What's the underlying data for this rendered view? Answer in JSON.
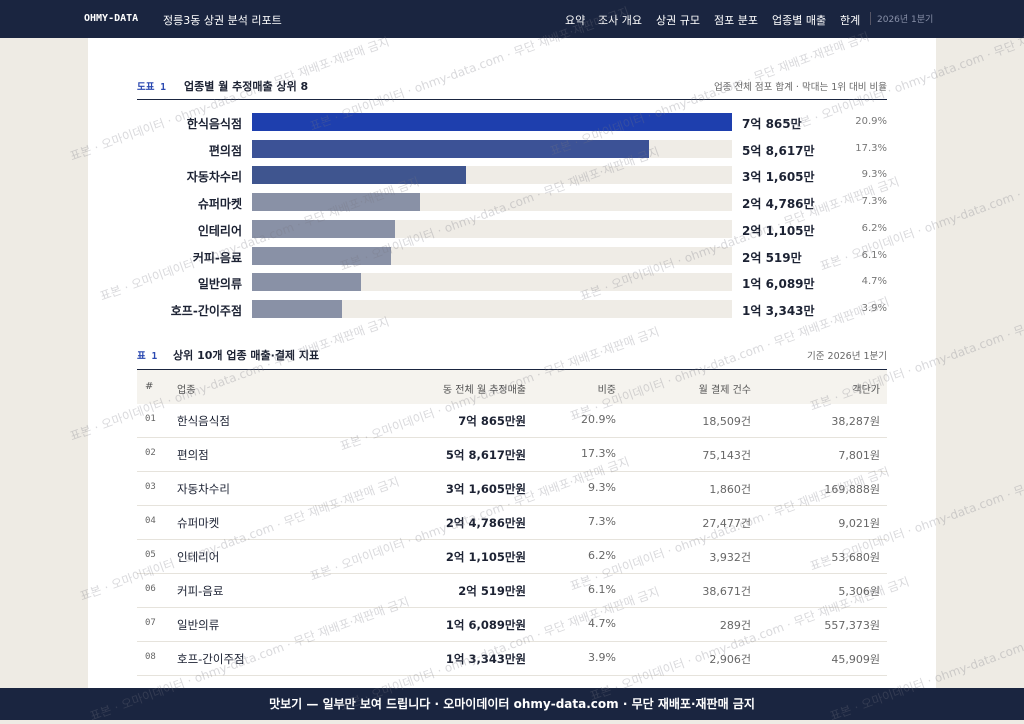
{
  "header": {
    "brand": "OHMY-DATA",
    "title": "정릉3동 상권 분석 리포트",
    "nav": [
      "요약",
      "조사 개요",
      "상권 규모",
      "점포 분포",
      "업종별 매출",
      "한계"
    ],
    "period": "2026년 1분기"
  },
  "chart_data": {
    "type": "bar",
    "figure_label": "도표 1",
    "title": "업종별 월 추정매출 상위 8",
    "note": "업종 전체 점포 합계 · 막대는 1위 대비 비율",
    "categories": [
      "한식음식점",
      "편의점",
      "자동차수리",
      "슈퍼마켓",
      "인테리어",
      "커피-음료",
      "일반의류",
      "호프-간이주점"
    ],
    "values": [
      70865,
      58617,
      31605,
      24786,
      21105,
      20519,
      16089,
      13343
    ],
    "value_labels": [
      "7억 865만",
      "5억 8,617만",
      "3억 1,605만",
      "2억 4,786만",
      "2억 1,105만",
      "2억 519만",
      "1억 6,089만",
      "1억 3,343만"
    ],
    "share_labels": [
      "20.9%",
      "17.3%",
      "9.3%",
      "7.3%",
      "6.2%",
      "6.1%",
      "4.7%",
      "3.9%"
    ],
    "colors": [
      "#1e3fae",
      "#3c5296",
      "#3f558f",
      "#8991a6",
      "#8991a6",
      "#8991a6",
      "#8991a6",
      "#8991a6"
    ]
  },
  "table": {
    "label": "표 1",
    "title": "상위 10개 업종 매출·결제 지표",
    "note": "기준 2026년 1분기",
    "columns": [
      "#",
      "업종",
      "동 전체 월 추정매출",
      "비중",
      "월 결제 건수",
      "객단가"
    ],
    "rows": [
      [
        "01",
        "한식음식점",
        "7억 865만원",
        "20.9%",
        "18,509건",
        "38,287원"
      ],
      [
        "02",
        "편의점",
        "5억 8,617만원",
        "17.3%",
        "75,143건",
        "7,801원"
      ],
      [
        "03",
        "자동차수리",
        "3억 1,605만원",
        "9.3%",
        "1,860건",
        "169,888원"
      ],
      [
        "04",
        "슈퍼마켓",
        "2억 4,786만원",
        "7.3%",
        "27,477건",
        "9,021원"
      ],
      [
        "05",
        "인테리어",
        "2억 1,105만원",
        "6.2%",
        "3,932건",
        "53,680원"
      ],
      [
        "06",
        "커피-음료",
        "2억 519만원",
        "6.1%",
        "38,671건",
        "5,306원"
      ],
      [
        "07",
        "일반의류",
        "1억 6,089만원",
        "4.7%",
        "289건",
        "557,373원"
      ],
      [
        "08",
        "호프-간이주점",
        "1억 3,343만원",
        "3.9%",
        "2,906건",
        "45,909원"
      ]
    ]
  },
  "watermark": "표본 · 오마이데이터 · ohmy-data.com · 무단 재배포·재판매 금지",
  "footer": "맛보기 — 일부만 보여 드립니다 · 오마이데이터 ohmy-data.com · 무단 재배포·재판매 금지"
}
